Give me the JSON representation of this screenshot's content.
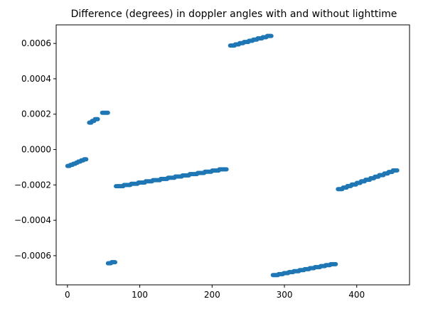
{
  "chart_data": {
    "type": "scatter",
    "title": "Difference (degrees) in doppler angles with and without lighttime",
    "xlabel": "",
    "ylabel": "",
    "xlim": [
      -15.6,
      473
    ],
    "ylim": [
      -0.000765,
      0.000705
    ],
    "x_ticks": [
      0,
      100,
      200,
      300,
      400
    ],
    "x_tick_labels": [
      "0",
      "100",
      "200",
      "300",
      "400"
    ],
    "y_ticks": [
      -0.0006,
      -0.0004,
      -0.0002,
      0.0,
      0.0002,
      0.0004,
      0.0006
    ],
    "y_tick_labels": [
      "−0.0006",
      "−0.0004",
      "−0.0002",
      "0.0000",
      "0.0002",
      "0.0004",
      "0.0006"
    ],
    "grid": false,
    "marker_color": "#1f77b4",
    "segments": [
      {
        "x_start": 0,
        "x_end": 26,
        "y_start": -9.3e-05,
        "y_end": -5.5e-05,
        "steps": 6
      },
      {
        "x_start": 30,
        "x_end": 42,
        "y_start": 0.000152,
        "y_end": 0.000172,
        "steps": 2
      },
      {
        "x_start": 48,
        "x_end": 56,
        "y_start": 0.000208,
        "y_end": 0.000208,
        "steps": 1
      },
      {
        "x_start": 56,
        "x_end": 66,
        "y_start": -0.000643,
        "y_end": -0.000637,
        "steps": 1
      },
      {
        "x_start": 67,
        "x_end": 220,
        "y_start": -0.000207,
        "y_end": -0.000112,
        "steps": 14
      },
      {
        "x_start": 225,
        "x_end": 282,
        "y_start": 0.000588,
        "y_end": 0.000642,
        "steps": 8
      },
      {
        "x_start": 284,
        "x_end": 371,
        "y_start": -0.00071,
        "y_end": -0.000648,
        "steps": 11
      },
      {
        "x_start": 374,
        "x_end": 456,
        "y_start": -0.000224,
        "y_end": -0.000118,
        "steps": 12
      }
    ]
  }
}
